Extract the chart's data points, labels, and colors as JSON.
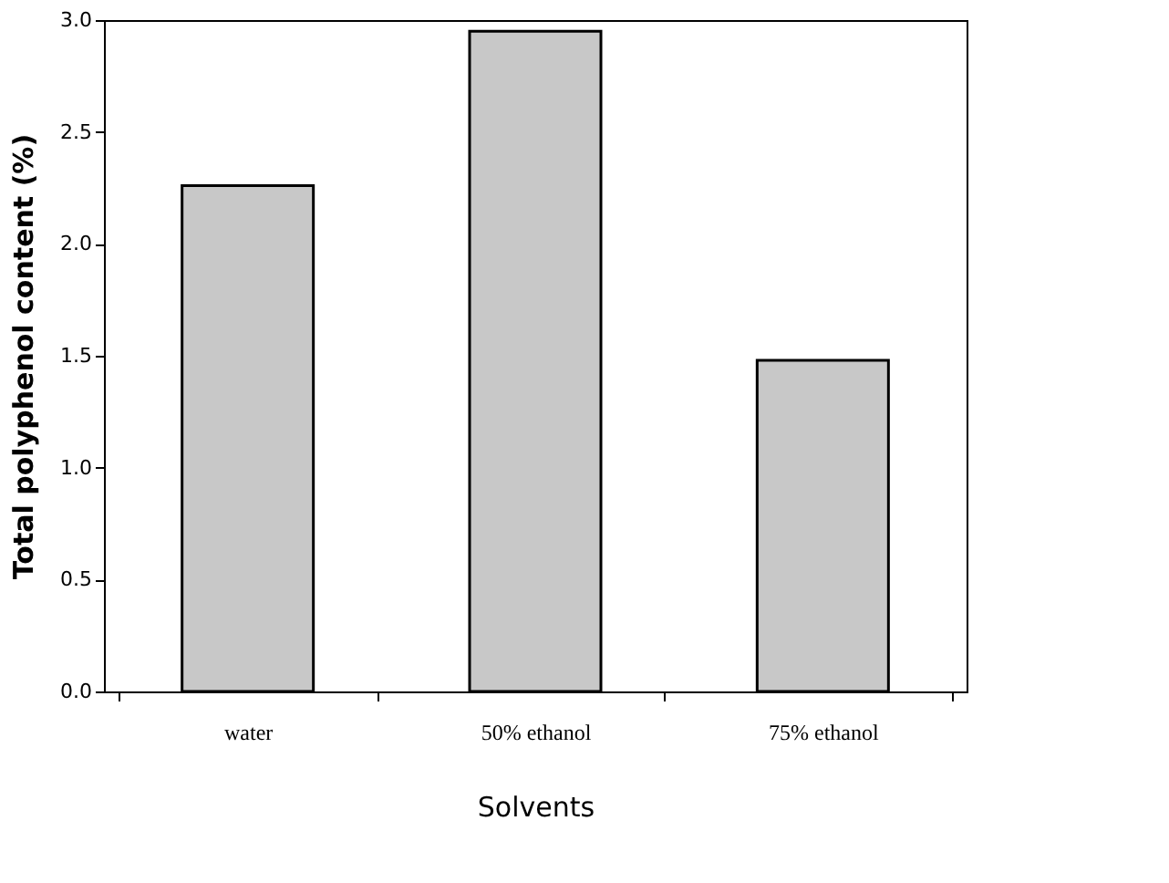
{
  "chart_data": {
    "type": "bar",
    "xlabel": "Solvents",
    "ylabel": "Total polyphenol content (%)",
    "categories": [
      "water",
      "50% ethanol",
      "75% ethanol"
    ],
    "values": [
      2.26,
      2.95,
      1.48
    ],
    "color": "#c8c8c8",
    "ylim": [
      0,
      3.0
    ],
    "yticks": [
      {
        "value": 0,
        "label": "0.0"
      },
      0.5,
      {
        "value": 1,
        "label": "1.0"
      },
      1.5,
      {
        "value": 2,
        "label": "2.0"
      },
      2.5,
      {
        "value": 3,
        "label": "3.0"
      }
    ],
    "grid": false
  }
}
